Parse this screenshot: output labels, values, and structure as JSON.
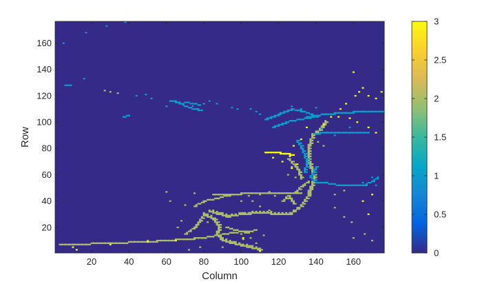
{
  "chart_data": {
    "type": "heatmap",
    "title": "",
    "xlabel": "Column",
    "ylabel": "Row",
    "xlim": [
      1,
      176
    ],
    "ylim": [
      1,
      176
    ],
    "x_ticks": [
      20,
      40,
      60,
      80,
      100,
      120,
      140,
      160
    ],
    "y_ticks": [
      20,
      40,
      60,
      80,
      100,
      120,
      140,
      160
    ],
    "colorbar": {
      "min": 0,
      "max": 3,
      "ticks": [
        0,
        0.5,
        1,
        1.5,
        2,
        2.5,
        3
      ],
      "tick_labels": [
        "0",
        "0.5",
        "1",
        "1.5",
        "2",
        "2.5",
        "3"
      ],
      "colormap": "parula",
      "colors": [
        "#352a87",
        "#0363e1",
        "#1485d4",
        "#06a7c6",
        "#38b99e",
        "#92bf73",
        "#d9ba56",
        "#fcce2e",
        "#f9fb0e"
      ]
    },
    "background_value": 0,
    "paths": [
      {
        "value": 2,
        "width": 2,
        "points": [
          [
            3,
            7
          ],
          [
            10,
            7
          ],
          [
            30,
            8
          ],
          [
            50,
            9
          ],
          [
            70,
            11
          ],
          [
            80,
            12
          ],
          [
            88,
            14
          ],
          [
            95,
            16
          ],
          [
            103,
            17
          ]
        ]
      },
      {
        "value": 2,
        "width": 3,
        "points": [
          [
            80,
            30
          ],
          [
            85,
            26
          ],
          [
            88,
            20
          ],
          [
            87,
            14
          ],
          [
            90,
            10
          ],
          [
            95,
            8
          ],
          [
            104,
            5
          ],
          [
            110,
            3
          ]
        ]
      },
      {
        "value": 2,
        "width": 3,
        "points": [
          [
            83,
            32
          ],
          [
            88,
            30
          ],
          [
            93,
            28
          ],
          [
            100,
            30
          ],
          [
            110,
            31
          ],
          [
            120,
            30
          ],
          [
            126,
            30
          ],
          [
            132,
            36
          ],
          [
            136,
            45
          ],
          [
            137,
            50
          ],
          [
            139,
            56
          ],
          [
            138,
            62
          ],
          [
            136,
            70
          ],
          [
            136,
            80
          ],
          [
            138,
            90
          ],
          [
            142,
            94
          ],
          [
            145,
            100
          ]
        ]
      },
      {
        "value": 2,
        "width": 2,
        "points": [
          [
            85,
            45
          ],
          [
            95,
            45
          ],
          [
            105,
            46
          ],
          [
            115,
            46
          ],
          [
            125,
            46
          ],
          [
            132,
            46
          ]
        ]
      },
      {
        "value": 2,
        "width": 2,
        "points": [
          [
            75,
            36
          ],
          [
            80,
            40
          ],
          [
            87,
            42
          ],
          [
            95,
            45
          ]
        ]
      },
      {
        "value": 2,
        "width": 2,
        "points": [
          [
            70,
            15
          ],
          [
            75,
            20
          ],
          [
            78,
            25
          ],
          [
            80,
            30
          ]
        ]
      },
      {
        "value": 2,
        "width": 2,
        "points": [
          [
            92,
            20
          ],
          [
            97,
            18
          ],
          [
            103,
            16
          ],
          [
            108,
            18
          ]
        ]
      },
      {
        "value": 2,
        "width": 2,
        "points": [
          [
            122,
            40
          ],
          [
            125,
            44
          ],
          [
            128,
            38
          ]
        ]
      },
      {
        "value": 2,
        "width": 2,
        "points": [
          [
            129,
            47
          ],
          [
            133,
            52
          ],
          [
            136,
            55
          ]
        ]
      },
      {
        "value": 3,
        "width": 2,
        "points": [
          [
            113,
            77
          ],
          [
            118,
            77
          ],
          [
            123,
            76
          ],
          [
            128,
            75
          ]
        ]
      },
      {
        "value": 2,
        "width": 2,
        "points": [
          [
            125,
            72
          ],
          [
            128,
            68
          ],
          [
            131,
            62
          ],
          [
            132,
            57
          ]
        ]
      },
      {
        "value": 1,
        "width": 2,
        "points": [
          [
            140,
            54
          ],
          [
            145,
            54
          ],
          [
            152,
            52
          ],
          [
            160,
            52
          ],
          [
            166,
            52
          ],
          [
            170,
            55
          ],
          [
            173,
            58
          ]
        ]
      },
      {
        "value": 1,
        "width": 2,
        "points": [
          [
            139,
            91
          ],
          [
            145,
            92
          ],
          [
            155,
            92
          ],
          [
            168,
            92
          ]
        ]
      },
      {
        "value": 1,
        "width": 2,
        "points": [
          [
            135,
            104
          ],
          [
            145,
            106
          ],
          [
            155,
            107
          ],
          [
            165,
            108
          ],
          [
            176,
            108
          ]
        ]
      },
      {
        "value": 1,
        "width": 2,
        "points": [
          [
            113,
            102
          ],
          [
            120,
            106
          ],
          [
            127,
            110
          ],
          [
            133,
            108
          ],
          [
            138,
            106
          ]
        ]
      },
      {
        "value": 1,
        "width": 2,
        "points": [
          [
            117,
            96
          ],
          [
            124,
            100
          ],
          [
            132,
            102
          ],
          [
            140,
            104
          ]
        ]
      },
      {
        "value": 1,
        "width": 2,
        "points": [
          [
            130,
            86
          ],
          [
            133,
            78
          ],
          [
            135,
            70
          ],
          [
            134,
            62
          ]
        ]
      },
      {
        "value": 1,
        "width": 2,
        "points": [
          [
            140,
            66
          ],
          [
            137,
            58
          ],
          [
            140,
            54
          ]
        ]
      },
      {
        "value": 1,
        "width": 2,
        "points": [
          [
            37,
            104
          ],
          [
            40,
            105
          ]
        ]
      },
      {
        "value": 1,
        "width": 2,
        "points": [
          [
            62,
            116
          ],
          [
            66,
            115
          ],
          [
            70,
            112
          ],
          [
            74,
            110
          ],
          [
            78,
            109
          ]
        ]
      },
      {
        "value": 1,
        "width": 1,
        "points": [
          [
            70,
            115
          ],
          [
            74,
            114
          ],
          [
            78,
            113
          ]
        ]
      },
      {
        "value": 1,
        "width": 1,
        "points": [
          [
            6,
            128
          ],
          [
            9,
            128
          ]
        ]
      }
    ],
    "points": [
      {
        "value": 1,
        "cells": [
          [
            5,
            160
          ],
          [
            17,
            168
          ],
          [
            28,
            173
          ],
          [
            38,
            176
          ],
          [
            16,
            133
          ],
          [
            44,
            120
          ],
          [
            49,
            121
          ],
          [
            52,
            118
          ],
          [
            60,
            112
          ],
          [
            74,
            112
          ],
          [
            80,
            114
          ],
          [
            83,
            116
          ],
          [
            87,
            114
          ],
          [
            95,
            111
          ],
          [
            98,
            110
          ],
          [
            105,
            110
          ],
          [
            110,
            106
          ],
          [
            127,
            112
          ],
          [
            132,
            110
          ],
          [
            140,
            111
          ],
          [
            143,
            95
          ],
          [
            150,
            90
          ],
          [
            158,
            96
          ],
          [
            163,
            92
          ],
          [
            165,
            54
          ],
          [
            170,
            58
          ],
          [
            172,
            52
          ],
          [
            108,
            108
          ]
        ]
      },
      {
        "value": 2,
        "cells": [
          [
            27,
            124
          ],
          [
            30,
            123
          ],
          [
            34,
            122
          ],
          [
            60,
            47
          ],
          [
            62,
            40
          ],
          [
            70,
            37
          ],
          [
            75,
            46
          ],
          [
            100,
            40
          ],
          [
            104,
            44
          ],
          [
            106,
            40
          ],
          [
            110,
            45
          ],
          [
            115,
            47
          ],
          [
            118,
            44
          ],
          [
            110,
            36
          ],
          [
            115,
            33
          ],
          [
            150,
            45
          ],
          [
            155,
            48
          ],
          [
            100,
            15
          ],
          [
            105,
            12
          ],
          [
            108,
            8
          ],
          [
            90,
            5
          ],
          [
            96,
            9
          ],
          [
            101,
            11
          ],
          [
            112,
            14
          ],
          [
            125,
            60
          ],
          [
            127,
            66
          ],
          [
            129,
            58
          ],
          [
            141,
            85
          ],
          [
            144,
            82
          ],
          [
            150,
            35
          ],
          [
            155,
            28
          ],
          [
            159,
            24
          ],
          [
            160,
            12
          ],
          [
            166,
            15
          ],
          [
            170,
            10
          ],
          [
            50,
            10
          ],
          [
            40,
            9
          ],
          [
            30,
            8
          ],
          [
            72,
            3
          ],
          [
            78,
            5
          ],
          [
            82,
            24
          ],
          [
            76,
            22
          ],
          [
            68,
            25
          ],
          [
            66,
            20
          ]
        ]
      },
      {
        "value": 3,
        "cells": [
          [
            160,
            138
          ],
          [
            165,
            126
          ],
          [
            168,
            120
          ],
          [
            172,
            118
          ],
          [
            175,
            123
          ],
          [
            152,
            104
          ],
          [
            158,
            103
          ],
          [
            162,
            100
          ],
          [
            168,
            96
          ],
          [
            172,
            92
          ],
          [
            161,
            120
          ],
          [
            156,
            114
          ],
          [
            153,
            110
          ],
          [
            148,
            104
          ],
          [
            144,
            98
          ],
          [
            101,
            12
          ],
          [
            110,
            2
          ],
          [
            10,
            5
          ],
          [
            12,
            3
          ],
          [
            30,
            7
          ],
          [
            50,
            9
          ],
          [
            65,
            10
          ],
          [
            113,
            77
          ],
          [
            117,
            73
          ],
          [
            122,
            70
          ],
          [
            126,
            74
          ],
          [
            127,
            65
          ],
          [
            130,
            68
          ],
          [
            170,
            45
          ],
          [
            165,
            40
          ],
          [
            168,
            30
          ],
          [
            128,
            82
          ],
          [
            132,
            87
          ],
          [
            135,
            96
          ],
          [
            163,
            123
          ]
        ]
      }
    ]
  }
}
